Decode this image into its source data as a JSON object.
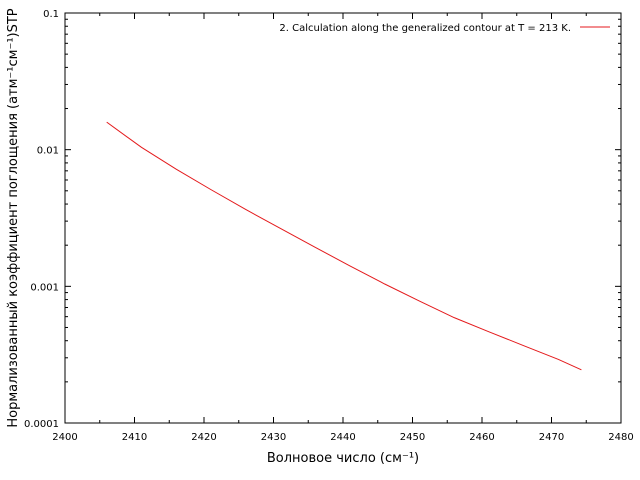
{
  "chart_data": {
    "type": "line",
    "x_scale": "linear",
    "y_scale": "log",
    "xlim": [
      2400,
      2480
    ],
    "ylim": [
      0.0001,
      0.1
    ],
    "x_ticks": [
      "2400",
      "2410",
      "2420",
      "2430",
      "2440",
      "2450",
      "2460",
      "2470",
      "2480"
    ],
    "y_ticks": [
      "0.0001",
      "0.001",
      "0.01",
      "0.1"
    ],
    "xlabel": "Волновое число (см⁻¹)",
    "ylabel": "Нормализованный коэффициент поглощения (атм⁻¹см⁻¹)STP",
    "grid": false,
    "legend_position": "top-right",
    "series": [
      {
        "name": "2. Calculation along the generalized contour at T = 213 K.",
        "color": "#e41a1c",
        "x": [
          2406,
          2411,
          2416,
          2421,
          2426,
          2431,
          2436,
          2441,
          2446,
          2451,
          2456,
          2461,
          2466,
          2471,
          2474.3
        ],
        "y": [
          0.0159,
          0.0104,
          0.0072,
          0.0051,
          0.00365,
          0.00265,
          0.00193,
          0.00141,
          0.00104,
          0.00078,
          0.00059,
          0.000465,
          0.000368,
          0.000292,
          0.000245
        ]
      }
    ]
  }
}
